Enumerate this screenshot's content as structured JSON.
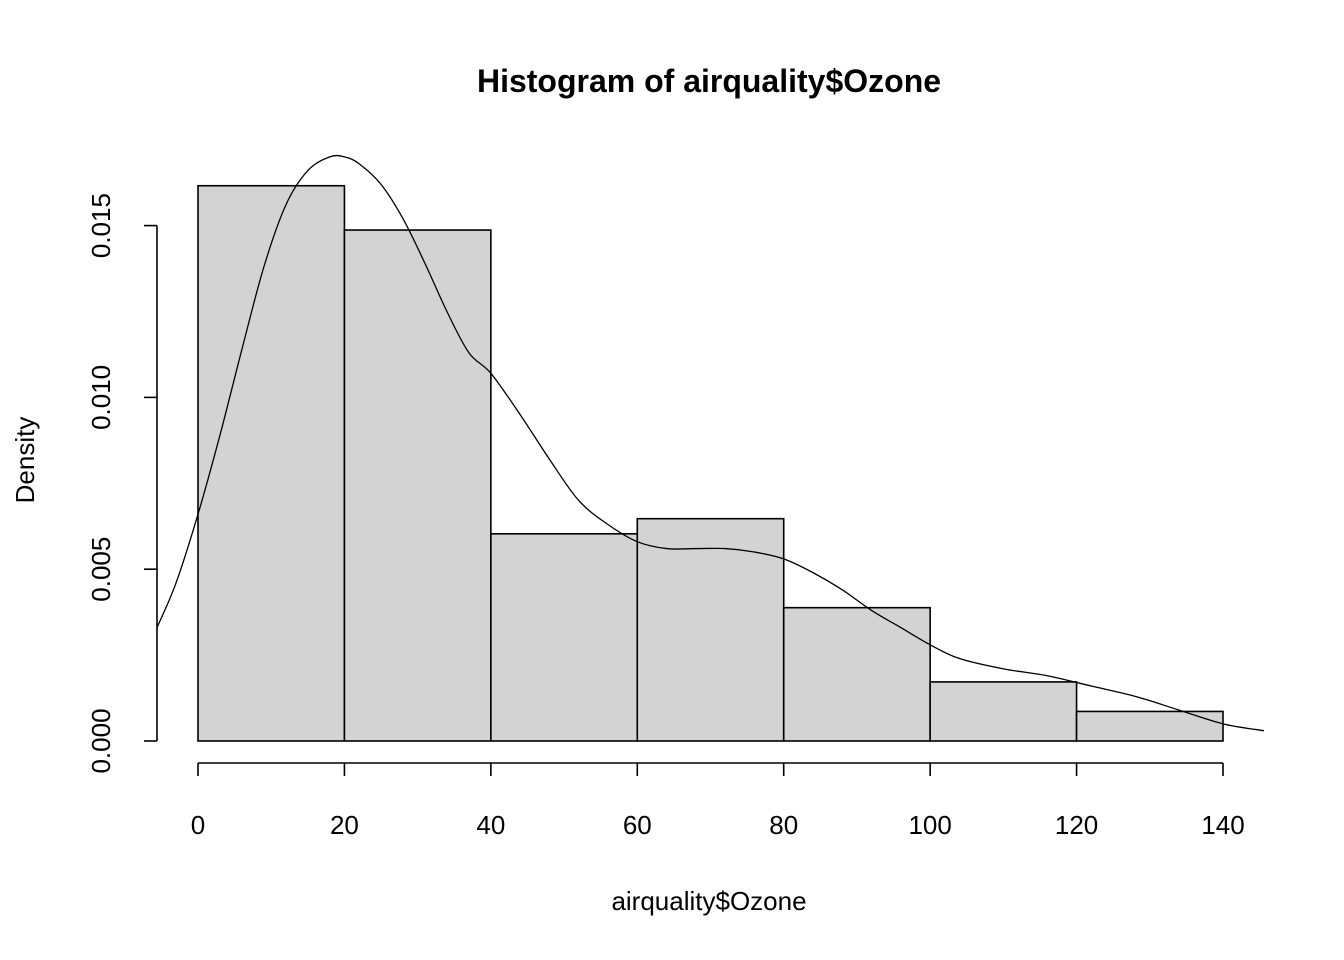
{
  "chart_data": {
    "type": "bar",
    "title": "Histogram of airquality$Ozone",
    "xlabel": "airquality$Ozone",
    "ylabel": "Density",
    "breaks": [
      0,
      20,
      40,
      60,
      80,
      100,
      120,
      140
    ],
    "values": [
      0.01616,
      0.01487,
      0.00603,
      0.00647,
      0.00388,
      0.00172,
      0.00086
    ],
    "xlim": [
      -5.6,
      145.6
    ],
    "ylim": [
      0,
      0.0172
    ],
    "x_ticks": [
      0,
      20,
      40,
      60,
      80,
      100,
      120,
      140
    ],
    "x_tick_labels": [
      "0",
      "20",
      "40",
      "60",
      "80",
      "100",
      "120",
      "140"
    ],
    "y_ticks": [
      0,
      0.005,
      0.01,
      0.015
    ],
    "y_tick_labels": [
      "0.000",
      "0.005",
      "0.010",
      "0.015"
    ],
    "bar_color": "#d3d3d3",
    "grid": false,
    "density_curve": {
      "name": "density",
      "x": [
        -5.6,
        -3,
        0,
        3,
        6,
        9,
        12,
        15,
        18,
        20,
        22,
        25,
        28,
        31,
        34,
        37,
        40,
        44,
        48,
        52,
        56,
        60,
        64,
        68,
        72,
        76,
        80,
        84,
        88,
        92,
        96,
        100,
        104,
        110,
        116,
        122,
        128,
        134,
        140,
        145.6
      ],
      "y": [
        0.0033,
        0.0046,
        0.0066,
        0.0089,
        0.0114,
        0.0138,
        0.0156,
        0.0166,
        0.017,
        0.017,
        0.0168,
        0.0162,
        0.0152,
        0.0139,
        0.0125,
        0.0113,
        0.0107,
        0.0095,
        0.0082,
        0.007,
        0.0063,
        0.0058,
        0.0056,
        0.0056,
        0.0056,
        0.0055,
        0.0053,
        0.0049,
        0.0044,
        0.0038,
        0.0033,
        0.0028,
        0.0024,
        0.0021,
        0.0019,
        0.0016,
        0.0013,
        0.0009,
        0.0005,
        0.0003
      ]
    }
  }
}
